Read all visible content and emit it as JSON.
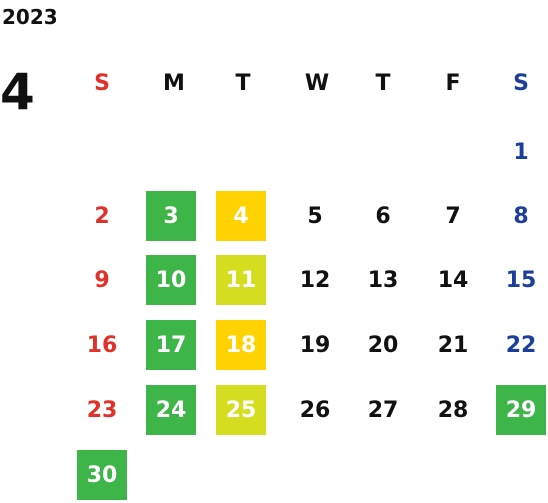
{
  "year": "2023",
  "month": "4",
  "weekdays": [
    "S",
    "M",
    "T",
    "W",
    "T",
    "F",
    "S"
  ],
  "colors": {
    "sunday": "#e0312a",
    "saturday": "#1b3f9a",
    "text": "#111111",
    "highlight_green": "#3db548",
    "highlight_yellow": "#ffd200",
    "highlight_lime": "#d5dd21"
  },
  "weeks": [
    [
      {
        "day": ""
      },
      {
        "day": ""
      },
      {
        "day": ""
      },
      {
        "day": ""
      },
      {
        "day": ""
      },
      {
        "day": ""
      },
      {
        "day": "1"
      }
    ],
    [
      {
        "day": "2"
      },
      {
        "day": "3",
        "highlight": "green"
      },
      {
        "day": "4",
        "highlight": "yellow"
      },
      {
        "day": "5"
      },
      {
        "day": "6"
      },
      {
        "day": "7"
      },
      {
        "day": "8"
      }
    ],
    [
      {
        "day": "9"
      },
      {
        "day": "10",
        "highlight": "green"
      },
      {
        "day": "11",
        "highlight": "lime"
      },
      {
        "day": "12"
      },
      {
        "day": "13"
      },
      {
        "day": "14"
      },
      {
        "day": "15"
      }
    ],
    [
      {
        "day": "16"
      },
      {
        "day": "17",
        "highlight": "green"
      },
      {
        "day": "18",
        "highlight": "yellow"
      },
      {
        "day": "19"
      },
      {
        "day": "20"
      },
      {
        "day": "21"
      },
      {
        "day": "22"
      }
    ],
    [
      {
        "day": "23"
      },
      {
        "day": "24",
        "highlight": "green"
      },
      {
        "day": "25",
        "highlight": "lime"
      },
      {
        "day": "26"
      },
      {
        "day": "27"
      },
      {
        "day": "28"
      },
      {
        "day": "29",
        "highlight": "green"
      }
    ],
    [
      {
        "day": "30",
        "highlight": "green"
      },
      {
        "day": ""
      },
      {
        "day": ""
      },
      {
        "day": ""
      },
      {
        "day": ""
      },
      {
        "day": ""
      },
      {
        "day": ""
      }
    ]
  ]
}
